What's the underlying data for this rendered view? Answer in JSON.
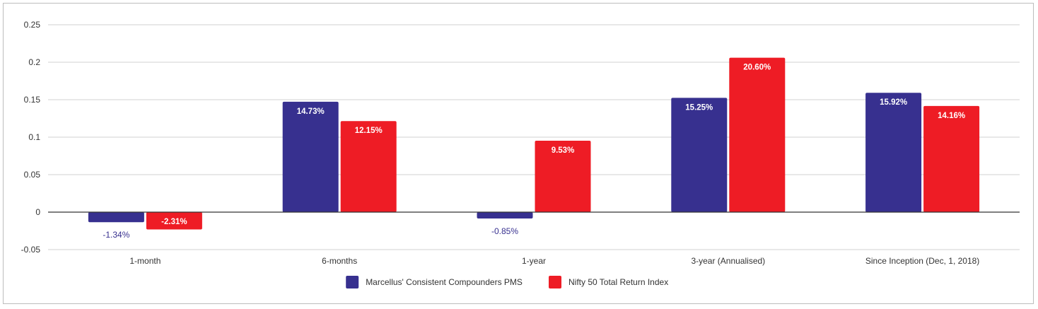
{
  "chart_data": {
    "type": "bar",
    "categories": [
      "1-month",
      "6-months",
      "1-year",
      "3-year (Annualised)",
      "Since Inception (Dec, 1, 2018)"
    ],
    "series": [
      {
        "name": "Marcellus' Consistent Compounders PMS",
        "color": "#37308f",
        "values": [
          -0.0134,
          0.1473,
          -0.0085,
          0.1525,
          0.1592
        ],
        "labels": [
          "-1.34%",
          "14.73%",
          "-0.85%",
          "15.25%",
          "15.92%"
        ]
      },
      {
        "name": "Nifty 50 Total Return Index",
        "color": "#ee1c25",
        "values": [
          -0.0231,
          0.1215,
          0.0953,
          0.206,
          0.1416
        ],
        "labels": [
          "-2.31%",
          "12.15%",
          "9.53%",
          "20.60%",
          "14.16%"
        ]
      }
    ],
    "yticks": [
      0.25,
      0.2,
      0.15,
      0.1,
      0.05,
      0,
      -0.05
    ],
    "ytick_labels": [
      "0.25",
      "0.2",
      "0.15",
      "0.1",
      "0.05",
      "0",
      "-0.05"
    ],
    "ylim": [
      -0.05,
      0.25
    ],
    "grid": true,
    "legend_position": "bottom"
  }
}
